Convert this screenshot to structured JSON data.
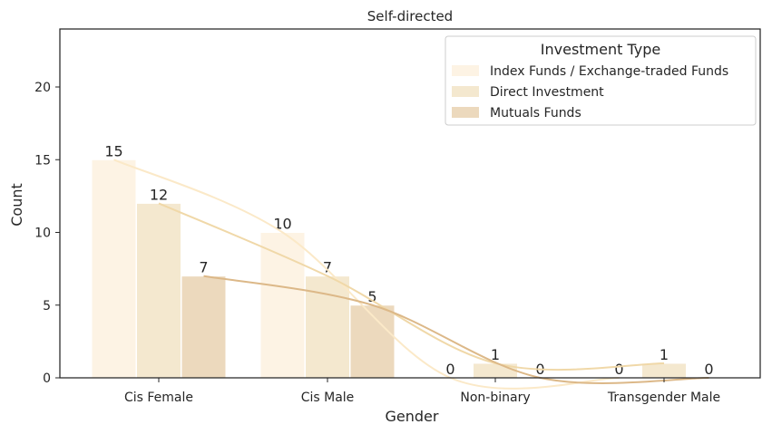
{
  "chart_data": {
    "type": "bar",
    "title": "Self-directed",
    "xlabel": "Gender",
    "ylabel": "Count",
    "ylim": [
      0,
      24
    ],
    "yticks": [
      0,
      5,
      10,
      15,
      20
    ],
    "grid": false,
    "legend_title": "Investment Type",
    "legend_position": "top-right",
    "categories": [
      "Cis Female",
      "Cis Male",
      "Non-binary",
      "Transgender Male"
    ],
    "series": [
      {
        "name": "Index Funds / Exchange-traded Funds",
        "color": "#fdf3e4",
        "line_color": "#fbe9c8",
        "values": [
          15,
          10,
          0,
          0
        ]
      },
      {
        "name": "Direct Investment",
        "color": "#f4e8cf",
        "line_color": "#f0d8a8",
        "values": [
          12,
          7,
          1,
          1
        ]
      },
      {
        "name": "Mutuals Funds",
        "color": "#ecd9bd",
        "line_color": "#dcb888",
        "values": [
          7,
          5,
          0,
          0
        ]
      }
    ]
  }
}
